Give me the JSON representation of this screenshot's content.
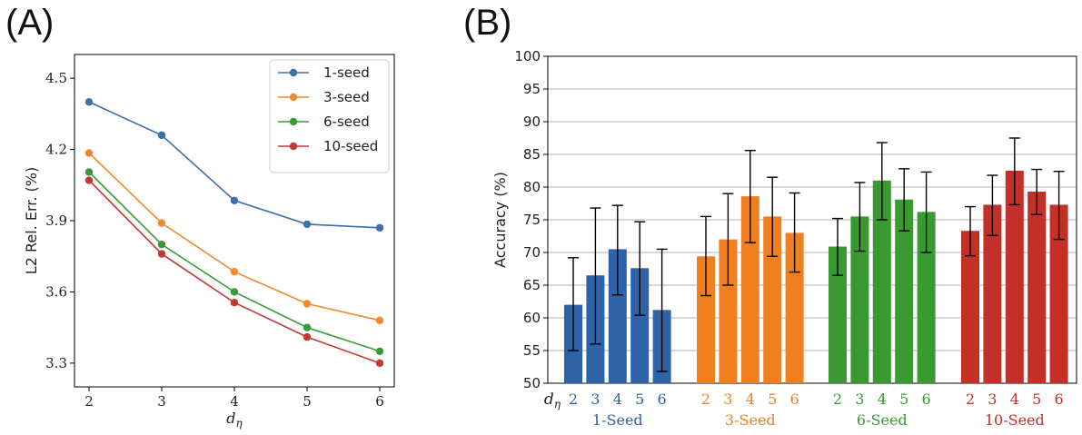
{
  "panels": {
    "a_tag": "(A)",
    "b_tag": "(B)"
  },
  "chart_data": [
    {
      "type": "line",
      "x": [
        2,
        3,
        4,
        5,
        6
      ],
      "xlabel": "dη",
      "ylabel": "L2 Rel. Err. (%)",
      "xlim": [
        1.8,
        6.2
      ],
      "ylim": [
        3.2,
        4.6
      ],
      "yticks": [
        "3.3",
        "3.6",
        "3.9",
        "4.2",
        "4.5"
      ],
      "xticks": [
        "2",
        "3",
        "4",
        "5",
        "6"
      ],
      "grid": false,
      "legend_position": "top-right",
      "series": [
        {
          "name": "1-seed",
          "color": "#3b6fae",
          "values": [
            4.4,
            4.26,
            3.985,
            3.885,
            3.87
          ]
        },
        {
          "name": "3-seed",
          "color": "#f0892d",
          "values": [
            4.185,
            3.89,
            3.685,
            3.55,
            3.48
          ]
        },
        {
          "name": "6-seed",
          "color": "#3a9a3a",
          "values": [
            4.105,
            3.8,
            3.6,
            3.45,
            3.35
          ]
        },
        {
          "name": "10-seed",
          "color": "#c23a30",
          "values": [
            4.07,
            3.76,
            3.555,
            3.41,
            3.3
          ]
        }
      ]
    },
    {
      "type": "bar",
      "ylabel": "Accuracy (%)",
      "ylim": [
        50,
        100
      ],
      "yticks": [
        "50",
        "55",
        "60",
        "65",
        "70",
        "75",
        "80",
        "85",
        "90",
        "95",
        "100"
      ],
      "grid": true,
      "x_axis_symbol": "dη",
      "x_tick_labels": [
        "2",
        "3",
        "4",
        "5",
        "6"
      ],
      "groups": [
        {
          "name": "1-Seed",
          "color": "#2e63a8",
          "values": [
            62.0,
            66.5,
            70.5,
            67.6,
            61.2
          ],
          "err_low": [
            55.0,
            56.0,
            63.5,
            60.4,
            51.8
          ],
          "err_high": [
            69.2,
            76.8,
            77.2,
            74.7,
            70.5
          ]
        },
        {
          "name": "3-Seed",
          "color": "#f0801f",
          "values": [
            69.4,
            72.0,
            78.6,
            75.5,
            73.0
          ],
          "err_low": [
            63.4,
            65.0,
            71.5,
            69.4,
            67.0
          ],
          "err_high": [
            75.5,
            79.0,
            85.6,
            81.5,
            79.1
          ]
        },
        {
          "name": "6-Seed",
          "color": "#3a9a32",
          "values": [
            70.9,
            75.5,
            81.0,
            78.1,
            76.2
          ],
          "err_low": [
            66.5,
            70.2,
            75.0,
            73.3,
            70.0
          ],
          "err_high": [
            75.2,
            80.7,
            86.8,
            82.8,
            82.3
          ]
        },
        {
          "name": "10-Seed",
          "color": "#c23028",
          "values": [
            73.3,
            77.3,
            82.5,
            79.3,
            77.3
          ],
          "err_low": [
            69.5,
            72.6,
            77.3,
            75.8,
            72.0
          ],
          "err_high": [
            77.0,
            81.8,
            87.5,
            82.7,
            82.4
          ]
        }
      ]
    }
  ]
}
